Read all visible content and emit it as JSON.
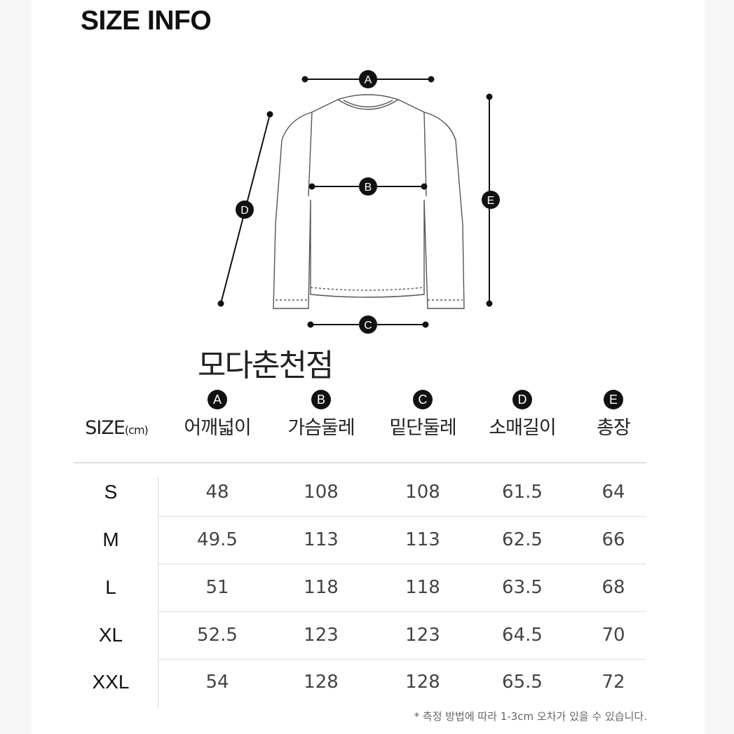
{
  "title": "SIZE INFO",
  "watermark": "모다춘천점",
  "diagram": {
    "labels": [
      "A",
      "B",
      "C",
      "D",
      "E"
    ]
  },
  "table": {
    "size_header": "SIZE",
    "unit": "(cm)",
    "columns": [
      {
        "badge": "A",
        "label": "어깨넓이"
      },
      {
        "badge": "B",
        "label": "가슴둘레"
      },
      {
        "badge": "C",
        "label": "밑단둘레"
      },
      {
        "badge": "D",
        "label": "소매길이"
      },
      {
        "badge": "E",
        "label": "총장"
      }
    ],
    "rows": [
      {
        "size": "S",
        "values": [
          "48",
          "108",
          "108",
          "61.5",
          "64"
        ]
      },
      {
        "size": "M",
        "values": [
          "49.5",
          "113",
          "113",
          "62.5",
          "66"
        ]
      },
      {
        "size": "L",
        "values": [
          "51",
          "118",
          "118",
          "63.5",
          "68"
        ]
      },
      {
        "size": "XL",
        "values": [
          "52.5",
          "123",
          "123",
          "64.5",
          "70"
        ]
      },
      {
        "size": "XXL",
        "values": [
          "54",
          "128",
          "128",
          "65.5",
          "72"
        ]
      }
    ]
  },
  "note": "* 측정 방법에 따라  1-3cm 오차가 있을 수 있습니다."
}
